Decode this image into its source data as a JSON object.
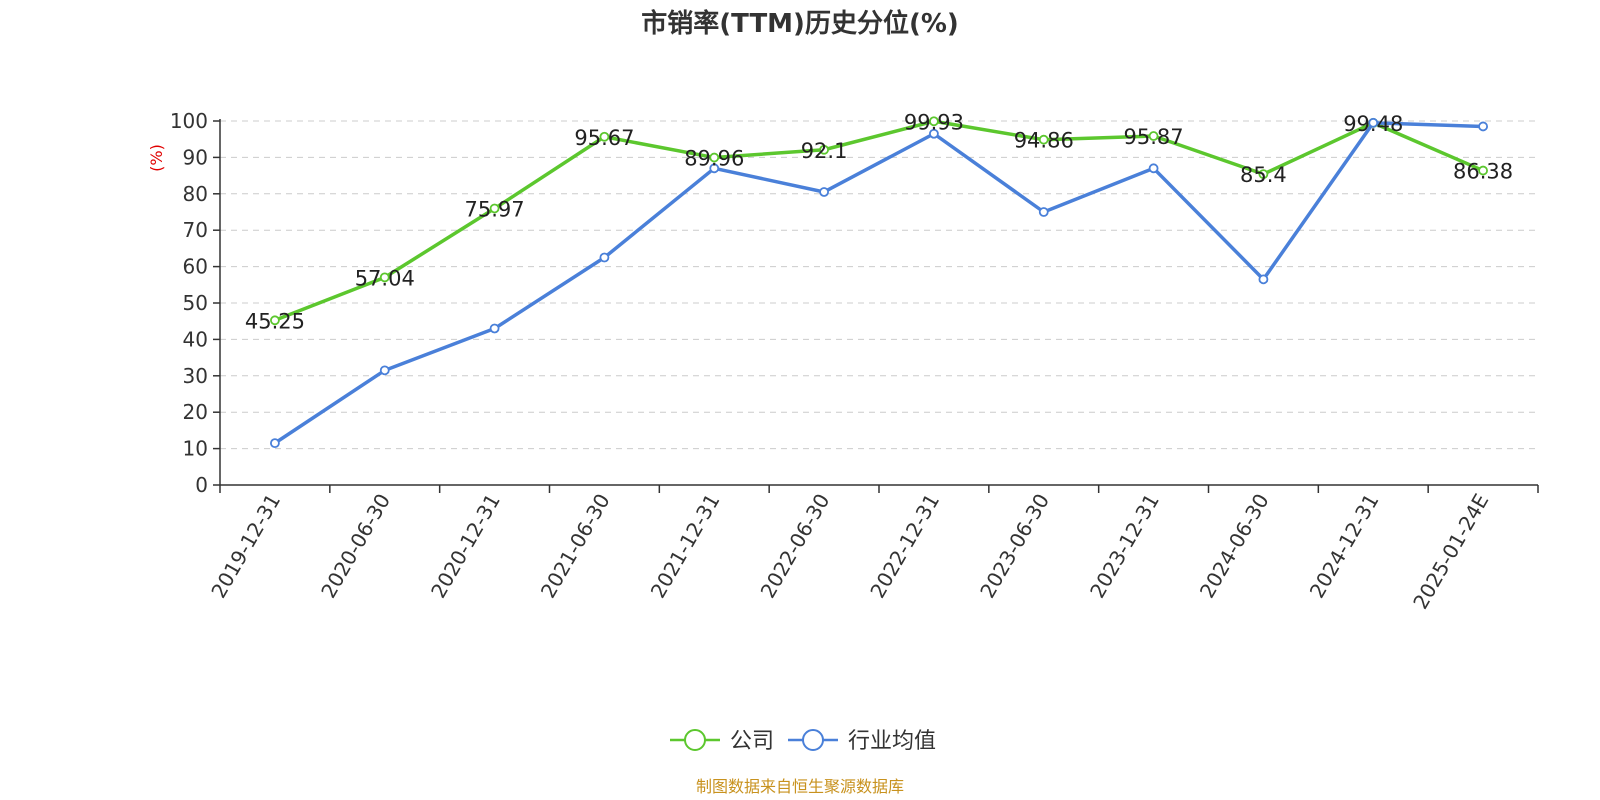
{
  "chart_data": {
    "type": "line",
    "title": "市销率(TTM)历史分位(%)",
    "ylabel": "(%)",
    "xlabel": "",
    "ylim": [
      0,
      100
    ],
    "yticks": [
      0,
      10,
      20,
      30,
      40,
      50,
      60,
      70,
      80,
      90,
      100
    ],
    "categories": [
      "2019-12-31",
      "2020-06-30",
      "2020-12-31",
      "2021-06-30",
      "2021-12-31",
      "2022-06-30",
      "2022-12-31",
      "2023-06-30",
      "2023-12-31",
      "2024-06-30",
      "2024-12-31",
      "2025-01-24E"
    ],
    "series": [
      {
        "name": "公司",
        "color": "#5cc72e",
        "values": [
          45.25,
          57.04,
          75.97,
          95.67,
          89.96,
          92.1,
          99.93,
          94.86,
          95.87,
          85.4,
          99.48,
          86.38
        ],
        "show_labels": true
      },
      {
        "name": "行业均值",
        "color": "#4a80d9",
        "values": [
          11.5,
          31.5,
          43.0,
          62.5,
          87.0,
          80.5,
          96.5,
          75.0,
          87.0,
          56.5,
          99.5,
          98.5
        ],
        "show_labels": false
      }
    ],
    "grid": "horizontal-dashed",
    "legend": "bottom-center"
  },
  "footer": {
    "source": "制图数据来自恒生聚源数据库"
  }
}
